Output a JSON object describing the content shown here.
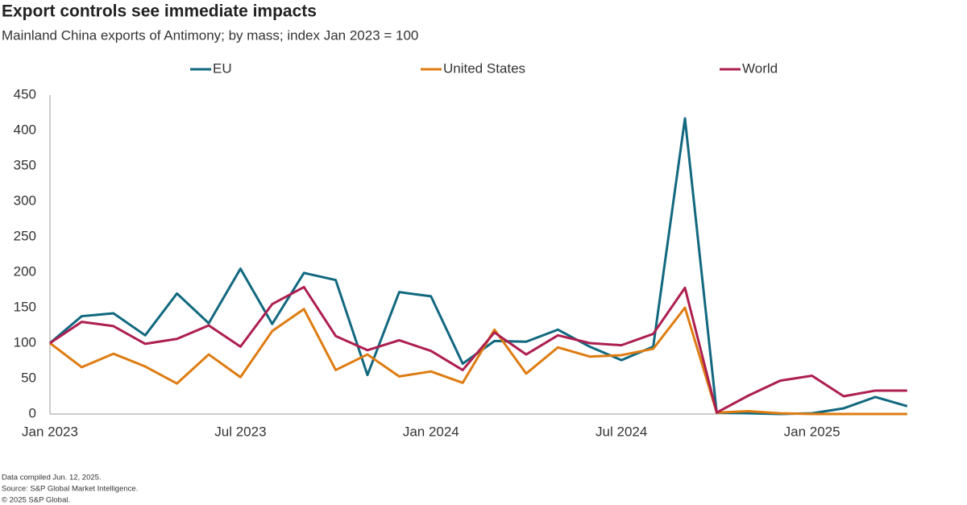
{
  "chart_data": {
    "type": "line",
    "title": "Export controls see immediate impacts",
    "subtitle": "Mainland China exports of Antimony; by mass; index Jan 2023 = 100",
    "categories": [
      "Jan 2023",
      null,
      null,
      null,
      null,
      null,
      "Jul 2023",
      null,
      null,
      null,
      null,
      null,
      "Jan 2024",
      null,
      null,
      null,
      null,
      null,
      "Jul 2024",
      null,
      null,
      null,
      null,
      null,
      "Jan 2025",
      null,
      null,
      null
    ],
    "series": [
      {
        "name": "EU",
        "color": "#11687f",
        "values": [
          100,
          138,
          142,
          111,
          170,
          128,
          205,
          127,
          199,
          189,
          55,
          172,
          166,
          71,
          103,
          102,
          119,
          95,
          76,
          95,
          417,
          2,
          1,
          0,
          1,
          8,
          24,
          11
        ]
      },
      {
        "name": "United States",
        "color": "#de7c12",
        "values": [
          100,
          66,
          85,
          67,
          43,
          84,
          52,
          117,
          148,
          62,
          84,
          53,
          60,
          44,
          119,
          57,
          94,
          81,
          83,
          92,
          150,
          2,
          4,
          1,
          0,
          0,
          0,
          0
        ]
      },
      {
        "name": "World",
        "color": "#ad1f4f",
        "values": [
          100,
          130,
          124,
          99,
          106,
          125,
          95,
          155,
          179,
          110,
          90,
          104,
          89,
          62,
          115,
          84,
          111,
          100,
          97,
          113,
          178,
          2,
          26,
          47,
          54,
          25,
          33,
          33
        ]
      }
    ],
    "ylim": [
      0,
      450
    ],
    "yticks": [
      0,
      50,
      100,
      150,
      200,
      250,
      300,
      350,
      400,
      450
    ],
    "legend": "top",
    "notes": [
      "Data compiled Jun. 12, 2025.",
      "Source: S&P Global Market Intelligence.",
      "© 2025 S&P Global."
    ]
  }
}
